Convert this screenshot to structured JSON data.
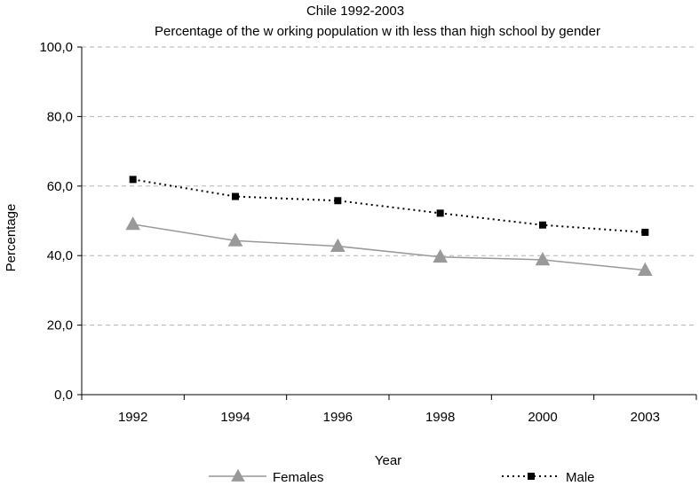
{
  "chart_data": {
    "type": "line",
    "title": "Chile 1992-2003",
    "subtitle": "Percentage of the w orking population w ith less than high school by gender",
    "xlabel": "Year",
    "ylabel": "Percentage",
    "categories": [
      "1992",
      "1994",
      "1996",
      "1998",
      "2000",
      "2003"
    ],
    "y_ticks": [
      "0,0",
      "20,0",
      "40,0",
      "60,0",
      "80,0",
      "100,0"
    ],
    "ylim": [
      0,
      100
    ],
    "grid": true,
    "legend_position": "bottom",
    "series": [
      {
        "name": "Females",
        "values": [
          49.0,
          44.3,
          42.7,
          39.6,
          38.8,
          35.8
        ],
        "color": "#999999",
        "marker": "triangle",
        "line": "solid"
      },
      {
        "name": "Male",
        "values": [
          61.9,
          57.0,
          55.8,
          52.2,
          48.8,
          46.7
        ],
        "color": "#000000",
        "marker": "square",
        "line": "dotted"
      }
    ]
  }
}
